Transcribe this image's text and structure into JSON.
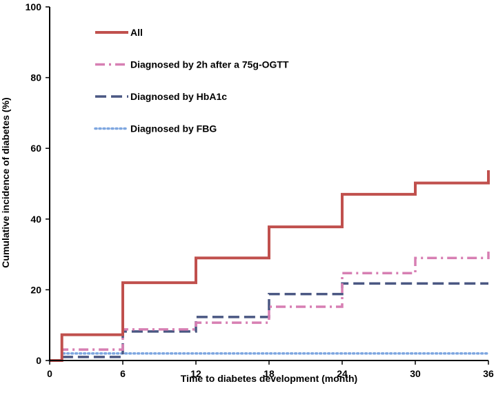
{
  "chart_data": {
    "type": "line",
    "step": true,
    "xlabel": "Time to diabetes development (month)",
    "ylabel": "Cumulative incidence of diabetes (%)",
    "xlim": [
      0,
      36
    ],
    "ylim": [
      0,
      100
    ],
    "xticks": [
      "0",
      "6",
      "12",
      "18",
      "24",
      "30",
      "36"
    ],
    "yticks": [
      "0",
      "20",
      "40",
      "60",
      "80",
      "100"
    ],
    "grid": false,
    "legend_position": "top-left",
    "series": [
      {
        "name": "All",
        "style": "solid",
        "color": "#C0504D",
        "points": [
          [
            0,
            0
          ],
          [
            1,
            0
          ],
          [
            1,
            7.3
          ],
          [
            6,
            7.3
          ],
          [
            6,
            22
          ],
          [
            12,
            22
          ],
          [
            12,
            29
          ],
          [
            18,
            29
          ],
          [
            18,
            37.8
          ],
          [
            24,
            37.8
          ],
          [
            24,
            47
          ],
          [
            30,
            47
          ],
          [
            30,
            50.2
          ],
          [
            36,
            50.2
          ],
          [
            36,
            53.8
          ]
        ]
      },
      {
        "name": "Diagnosed by 2h after a 75g-OGTT",
        "style": "dashdot",
        "color": "#D77FB3",
        "points": [
          [
            0,
            0
          ],
          [
            1,
            0
          ],
          [
            1,
            3.1
          ],
          [
            6,
            3.1
          ],
          [
            6,
            8.8
          ],
          [
            12,
            8.8
          ],
          [
            12,
            10.7
          ],
          [
            18,
            10.7
          ],
          [
            18,
            15.2
          ],
          [
            24,
            15.2
          ],
          [
            24,
            24.7
          ],
          [
            30,
            24.7
          ],
          [
            30,
            29
          ],
          [
            36,
            29
          ],
          [
            36,
            30.8
          ]
        ]
      },
      {
        "name": "Diagnosed by HbA1c",
        "style": "dash",
        "color": "#4A5782",
        "points": [
          [
            0,
            0
          ],
          [
            1,
            0
          ],
          [
            1,
            1
          ],
          [
            6,
            1
          ],
          [
            6,
            8.2
          ],
          [
            12,
            8.2
          ],
          [
            12,
            12.3
          ],
          [
            18,
            12.3
          ],
          [
            18,
            18.8
          ],
          [
            24,
            18.8
          ],
          [
            24,
            21.8
          ],
          [
            36,
            21.8
          ]
        ]
      },
      {
        "name": "Diagnosed by FBG",
        "style": "dot",
        "color": "#7EA6E0",
        "points": [
          [
            0,
            0
          ],
          [
            1,
            0
          ],
          [
            1,
            2
          ],
          [
            36,
            2
          ]
        ]
      }
    ]
  }
}
